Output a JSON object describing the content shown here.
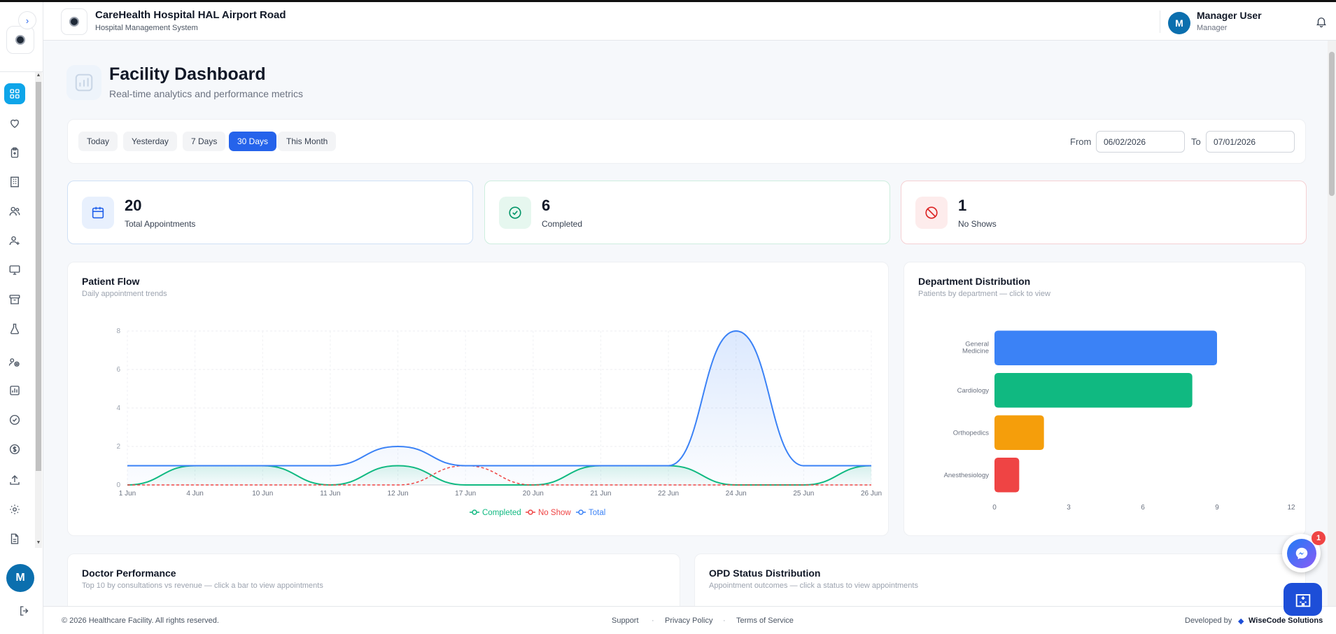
{
  "header": {
    "title": "CareHealth Hospital HAL Airport Road",
    "subtitle": "Hospital Management System",
    "user_initial": "M",
    "user_name": "Manager User",
    "user_role": "Manager"
  },
  "sidebar": {
    "avatar_initial": "M",
    "items": [
      "dashboard-icon",
      "heart-icon",
      "clipboard-icon",
      "building-icon",
      "users-icon",
      "user-plus-icon",
      "monitor-icon",
      "archive-icon",
      "flask-icon",
      "settings-group-icon",
      "chart-icon",
      "check-circle-icon",
      "dollar-icon",
      "upload-icon",
      "gear-icon",
      "document-icon"
    ]
  },
  "page": {
    "title": "Facility Dashboard",
    "subtitle": "Real-time analytics and performance metrics"
  },
  "filters": {
    "chips": [
      "Today",
      "Yesterday",
      "7 Days",
      "30 Days",
      "This Month"
    ],
    "active": "30 Days",
    "from_label": "From",
    "from_value": "06/02/2026",
    "to_label": "To",
    "to_value": "07/01/2026"
  },
  "stats": [
    {
      "value": "20",
      "label": "Total Appointments",
      "color": "#2563eb"
    },
    {
      "value": "6",
      "label": "Completed",
      "color": "#10b981"
    },
    {
      "value": "1",
      "label": "No Shows",
      "color": "#dc2626"
    }
  ],
  "patient_flow": {
    "title": "Patient Flow",
    "subtitle": "Daily appointment trends"
  },
  "department": {
    "title": "Department Distribution",
    "subtitle": "Patients by department — click to view"
  },
  "doctor_perf": {
    "title": "Doctor Performance",
    "subtitle": "Top 10 by consultations vs revenue — click a bar to view appointments"
  },
  "opd_status": {
    "title": "OPD Status Distribution",
    "subtitle": "Appointment outcomes — click a status to view appointments"
  },
  "chart_data": [
    {
      "type": "line",
      "x": [
        "1 Jun",
        "4 Jun",
        "10 Jun",
        "11 Jun",
        "12 Jun",
        "17 Jun",
        "20 Jun",
        "21 Jun",
        "22 Jun",
        "24 Jun",
        "25 Jun",
        "26 Jun"
      ],
      "series": [
        {
          "name": "Completed",
          "values": [
            0,
            1,
            1,
            0,
            1,
            0,
            0,
            1,
            1,
            0,
            0,
            1
          ],
          "color": "#10b981",
          "dashed": false
        },
        {
          "name": "No Show",
          "values": [
            0,
            0,
            0,
            0,
            0,
            1,
            0,
            0,
            0,
            0,
            0,
            0
          ],
          "color": "#ef4444",
          "dashed": true
        },
        {
          "name": "Total",
          "values": [
            1,
            1,
            1,
            1,
            2,
            1,
            1,
            1,
            1,
            8,
            1,
            1
          ],
          "color": "#3b82f6",
          "dashed": false
        }
      ],
      "ylim": [
        0,
        8
      ],
      "yticks": [
        0,
        2,
        4,
        6,
        8
      ],
      "grid": true,
      "legend": "bottom"
    },
    {
      "type": "bar",
      "orientation": "horizontal",
      "categories": [
        "General Medicine",
        "Cardiology",
        "Orthopedics",
        "Anesthesiology"
      ],
      "values": [
        9,
        8,
        2,
        1
      ],
      "colors": [
        "#3b82f6",
        "#10b981",
        "#f59e0b",
        "#ef4444"
      ],
      "xlim": [
        0,
        12
      ],
      "xticks": [
        0,
        3,
        6,
        9,
        12
      ]
    }
  ],
  "footer": {
    "copyright": "© 2026 Healthcare Facility. All rights reserved.",
    "support": "Support",
    "privacy": "Privacy Policy",
    "terms": "Terms of Service",
    "developed_by": "Developed by",
    "brand": "WiseCode Solutions"
  },
  "floating": {
    "message_badge": "1"
  }
}
